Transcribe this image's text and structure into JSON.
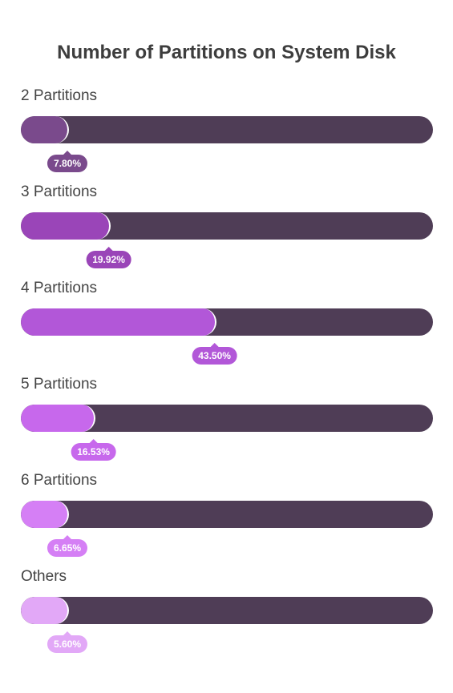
{
  "chart_data": {
    "type": "bar",
    "orientation": "horizontal",
    "title": "Number of Partitions on System Disk",
    "categories": [
      "2 Partitions",
      "3 Partitions",
      "4 Partitions",
      "5 Partitions",
      "6 Partitions",
      "Others"
    ],
    "values": [
      7.8,
      19.92,
      43.5,
      16.53,
      6.65,
      5.6
    ],
    "value_labels": [
      "7.80%",
      "19.92%",
      "43.50%",
      "16.53%",
      "6.65%",
      "5.60%"
    ],
    "colors": [
      "#7a4a8c",
      "#9a45b8",
      "#b257d8",
      "#c768ec",
      "#d57ff5",
      "#e2a8f7"
    ],
    "track_color": "#4f3d56",
    "unit": "%"
  }
}
